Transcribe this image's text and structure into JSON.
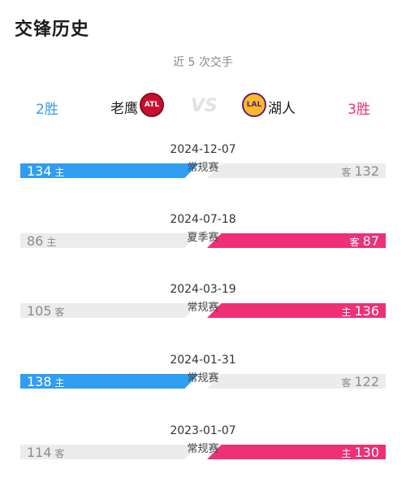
{
  "page": {
    "title": "交锋历史",
    "subtitle": "近 5 次交手"
  },
  "teams": {
    "left": {
      "name": "老鹰",
      "wins_label": "2胜",
      "logo_text": "ATL",
      "color": "#2f9df0"
    },
    "right": {
      "name": "湖人",
      "wins_label": "3胜",
      "logo_text": "LAL",
      "color": "#ef2f76"
    },
    "vs_label": "VS"
  },
  "games": [
    {
      "date": "2024-12-07",
      "type": "常规赛",
      "left_score": "134",
      "left_tag": "主",
      "right_score": "132",
      "right_tag": "客",
      "winner": "left"
    },
    {
      "date": "2024-07-18",
      "type": "夏季赛",
      "left_score": "86",
      "left_tag": "主",
      "right_score": "87",
      "right_tag": "客",
      "winner": "right"
    },
    {
      "date": "2024-03-19",
      "type": "常规赛",
      "left_score": "105",
      "left_tag": "客",
      "right_score": "136",
      "right_tag": "主",
      "winner": "right"
    },
    {
      "date": "2024-01-31",
      "type": "常规赛",
      "left_score": "138",
      "left_tag": "主",
      "right_score": "122",
      "right_tag": "客",
      "winner": "left"
    },
    {
      "date": "2023-01-07",
      "type": "常规赛",
      "left_score": "114",
      "left_tag": "客",
      "right_score": "130",
      "right_tag": "主",
      "winner": "right"
    }
  ]
}
